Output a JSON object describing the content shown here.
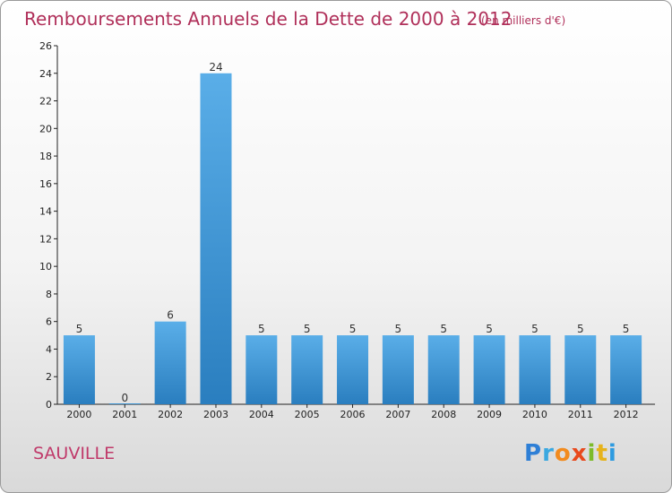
{
  "chart_data": {
    "type": "bar",
    "title": "Remboursements Annuels de la Dette de 2000 à 2012",
    "subtitle": "(en milliers d'€)",
    "categories": [
      "2000",
      "2001",
      "2002",
      "2003",
      "2004",
      "2005",
      "2006",
      "2007",
      "2008",
      "2009",
      "2010",
      "2011",
      "2012"
    ],
    "values": [
      5,
      0,
      6,
      24,
      5,
      5,
      5,
      5,
      5,
      5,
      5,
      5,
      5
    ],
    "data_labels": [
      "5",
      "0",
      "6",
      "24",
      "5",
      "5",
      "5",
      "5",
      "5",
      "5",
      "5",
      "5",
      "5"
    ],
    "yticks": [
      0,
      2,
      4,
      6,
      8,
      10,
      12,
      14,
      16,
      18,
      20,
      22,
      24,
      26
    ],
    "ylim": [
      0,
      26
    ],
    "xlabel": "",
    "ylabel": "",
    "grid": false,
    "colors": {
      "bar_light": "#5aaee8",
      "bar_dark": "#2a7ebf",
      "axis": "#222222",
      "title": "#b0305a"
    }
  },
  "footer": {
    "commune": "SAUVILLE",
    "logo": [
      {
        "ch": "P",
        "color": "#2e7fd6"
      },
      {
        "ch": "r",
        "color": "#3aa8e0"
      },
      {
        "ch": "o",
        "color": "#f28b1e"
      },
      {
        "ch": "x",
        "color": "#e8491d"
      },
      {
        "ch": "i",
        "color": "#7dbb2a"
      },
      {
        "ch": "t",
        "color": "#e6b31c"
      },
      {
        "ch": "i",
        "color": "#2e9be0"
      }
    ]
  }
}
